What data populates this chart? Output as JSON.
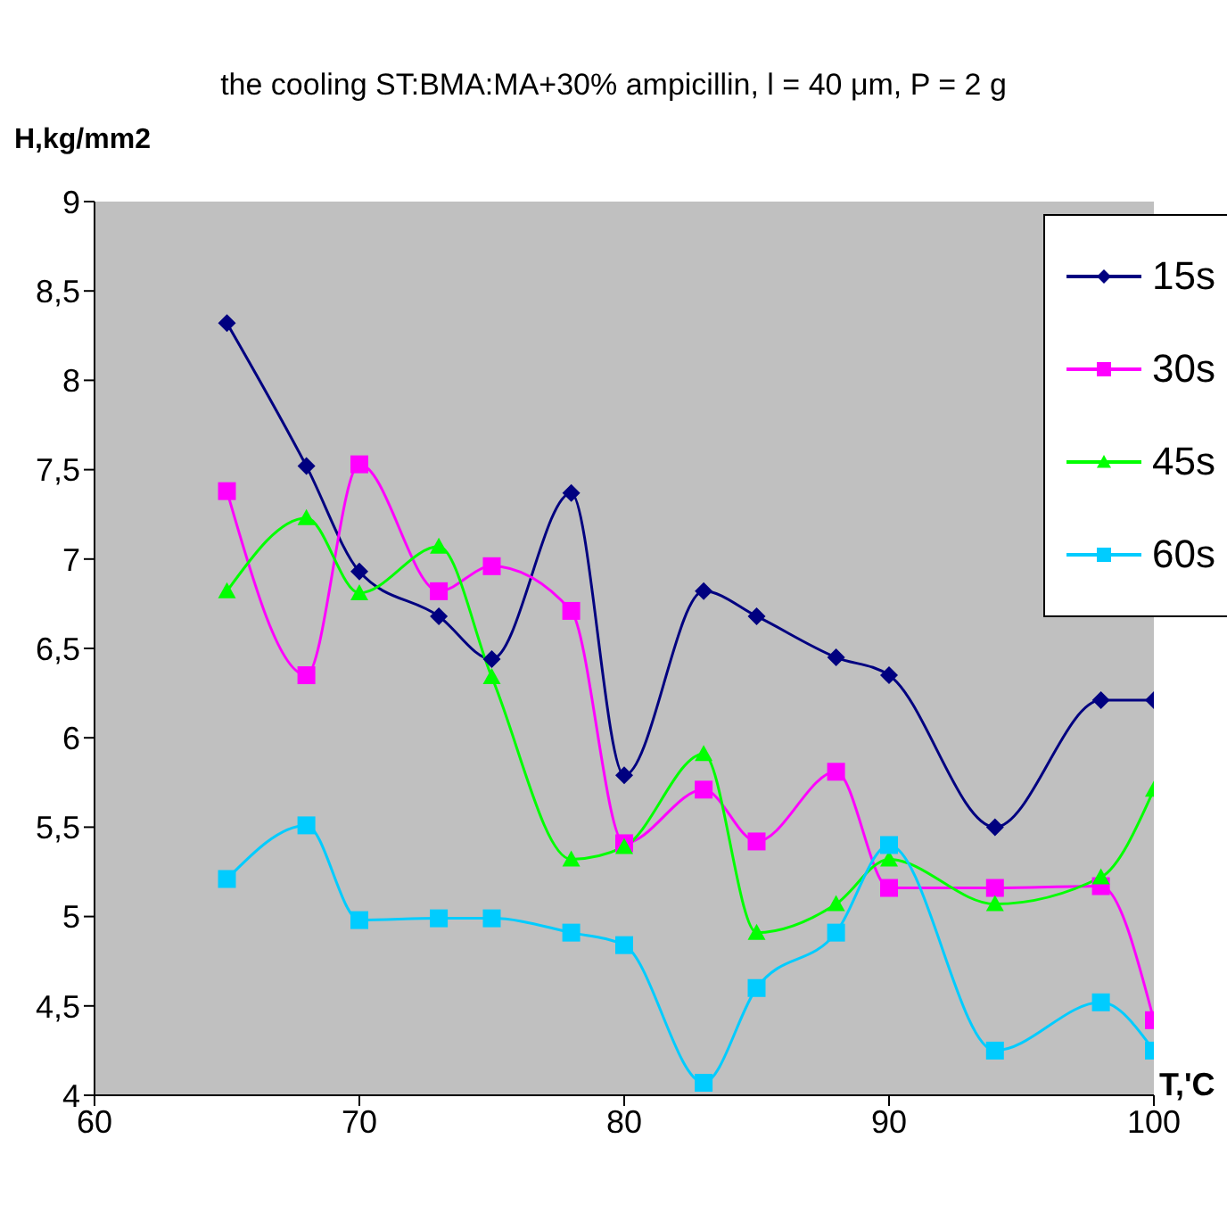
{
  "chart_data": {
    "type": "line",
    "title": "the cooling ST:BMA:MA+30% ampicillin, l = 40 μm, P = 2 g",
    "xlabel": "T,'C",
    "ylabel": "H,kg/mm2",
    "x": [
      65,
      68,
      70,
      73,
      75,
      78,
      80,
      83,
      85,
      88,
      90,
      94,
      98,
      100
    ],
    "series": [
      {
        "name": "15s",
        "color": "#000080",
        "marker": "diamond",
        "values": [
          8.32,
          7.52,
          6.93,
          6.68,
          6.44,
          7.37,
          5.79,
          6.82,
          6.68,
          6.45,
          6.35,
          5.5,
          6.21,
          6.21
        ]
      },
      {
        "name": "30s",
        "color": "#ff00ff",
        "marker": "square",
        "values": [
          7.38,
          6.35,
          7.53,
          6.82,
          6.96,
          6.71,
          5.41,
          5.71,
          5.42,
          5.81,
          5.16,
          5.16,
          5.17,
          4.42
        ]
      },
      {
        "name": "45s",
        "color": "#00ff00",
        "marker": "triangle",
        "values": [
          6.82,
          7.23,
          6.81,
          7.07,
          6.34,
          5.32,
          5.39,
          5.91,
          4.91,
          5.07,
          5.32,
          5.07,
          5.22,
          5.71
        ]
      },
      {
        "name": "60s",
        "color": "#00ccff",
        "marker": "square",
        "values": [
          5.21,
          5.51,
          4.98,
          4.99,
          4.99,
          4.91,
          4.84,
          4.07,
          4.6,
          4.91,
          5.4,
          4.25,
          4.52,
          4.25
        ]
      }
    ],
    "xlim": [
      60,
      100
    ],
    "xticks": [
      60,
      70,
      80,
      90,
      100
    ],
    "ylim": [
      4,
      9
    ],
    "yticks": [
      4,
      {
        "value": 4.5,
        "label": "4,5"
      },
      5,
      {
        "value": 5.5,
        "label": "5,5"
      },
      6,
      {
        "value": 6.5,
        "label": "6,5"
      },
      7,
      {
        "value": 7.5,
        "label": "7,5"
      },
      8,
      {
        "value": 8.5,
        "label": "8,5"
      },
      9
    ],
    "grid": false,
    "legend": "top right",
    "line_style": "solid"
  }
}
